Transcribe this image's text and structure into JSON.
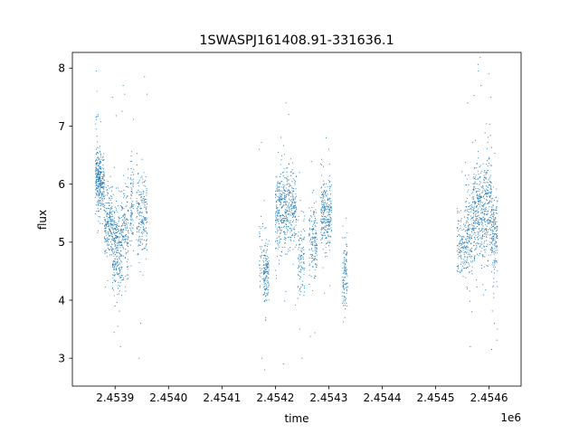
{
  "chart_data": {
    "type": "scatter",
    "title": "1SWASPJ161408.91-331636.1",
    "xlabel": "time",
    "ylabel": "flux",
    "x_offset_label": "1e6",
    "x_scale": 1000000,
    "xlim": [
      2.45382,
      2.45466
    ],
    "ylim": [
      2.52,
      8.27
    ],
    "x_ticks": [
      2.4539,
      2.454,
      2.4541,
      2.4542,
      2.4543,
      2.4544,
      2.4545,
      2.4546
    ],
    "x_tick_labels": [
      "2.4539",
      "2.4540",
      "2.4541",
      "2.4542",
      "2.4543",
      "2.4544",
      "2.4545",
      "2.4546"
    ],
    "y_ticks": [
      3,
      4,
      5,
      6,
      7,
      8
    ],
    "y_tick_labels": [
      "3",
      "4",
      "5",
      "6",
      "7",
      "8"
    ],
    "grid": false,
    "marker_color": "#1f77b4",
    "clusters": [
      {
        "x_start": 2453863,
        "x_end": 2453874,
        "y_center": 6.1,
        "y_spread": 0.25,
        "n": 260
      },
      {
        "x_start": 2453875,
        "x_end": 2453880,
        "y_center": 6.0,
        "y_spread": 0.25,
        "n": 80
      },
      {
        "x_start": 2453880,
        "x_end": 2453895,
        "y_center": 5.3,
        "y_spread": 0.3,
        "n": 200
      },
      {
        "x_start": 2453895,
        "x_end": 2453912,
        "y_center": 4.9,
        "y_spread": 0.35,
        "n": 260
      },
      {
        "x_start": 2453912,
        "x_end": 2453925,
        "y_center": 5.2,
        "y_spread": 0.4,
        "n": 150
      },
      {
        "x_start": 2453928,
        "x_end": 2453935,
        "y_center": 5.6,
        "y_spread": 0.4,
        "n": 80
      },
      {
        "x_start": 2453940,
        "x_end": 2453960,
        "y_center": 5.5,
        "y_spread": 0.35,
        "n": 200
      },
      {
        "x_start": 2454170,
        "x_end": 2454178,
        "y_center": 4.8,
        "y_spread": 0.3,
        "n": 40
      },
      {
        "x_start": 2454178,
        "x_end": 2454188,
        "y_center": 4.45,
        "y_spread": 0.25,
        "n": 140
      },
      {
        "x_start": 2454200,
        "x_end": 2454220,
        "y_center": 5.55,
        "y_spread": 0.35,
        "n": 260
      },
      {
        "x_start": 2454220,
        "x_end": 2454240,
        "y_center": 5.6,
        "y_spread": 0.35,
        "n": 220
      },
      {
        "x_start": 2454242,
        "x_end": 2454255,
        "y_center": 4.75,
        "y_spread": 0.35,
        "n": 100
      },
      {
        "x_start": 2454263,
        "x_end": 2454278,
        "y_center": 5.0,
        "y_spread": 0.3,
        "n": 150
      },
      {
        "x_start": 2454285,
        "x_end": 2454305,
        "y_center": 5.5,
        "y_spread": 0.3,
        "n": 260
      },
      {
        "x_start": 2454325,
        "x_end": 2454335,
        "y_center": 4.45,
        "y_spread": 0.3,
        "n": 110
      },
      {
        "x_start": 2454540,
        "x_end": 2454555,
        "y_center": 5.0,
        "y_spread": 0.3,
        "n": 110
      },
      {
        "x_start": 2454555,
        "x_end": 2454570,
        "y_center": 5.2,
        "y_spread": 0.4,
        "n": 160
      },
      {
        "x_start": 2454570,
        "x_end": 2454588,
        "y_center": 5.5,
        "y_spread": 0.4,
        "n": 260
      },
      {
        "x_start": 2454588,
        "x_end": 2454605,
        "y_center": 5.6,
        "y_spread": 0.45,
        "n": 230
      },
      {
        "x_start": 2454605,
        "x_end": 2454616,
        "y_center": 5.1,
        "y_spread": 0.4,
        "n": 160
      }
    ],
    "outliers": [
      {
        "x": 2453865,
        "y": 7.95
      },
      {
        "x": 2453866,
        "y": 7.6
      },
      {
        "x": 2453868,
        "y": 7.2
      },
      {
        "x": 2453900,
        "y": 3.9
      },
      {
        "x": 2453905,
        "y": 3.55
      },
      {
        "x": 2453910,
        "y": 3.2
      },
      {
        "x": 2453915,
        "y": 7.7
      },
      {
        "x": 2453918,
        "y": 7.55
      },
      {
        "x": 2453945,
        "y": 3.0
      },
      {
        "x": 2453948,
        "y": 3.6
      },
      {
        "x": 2453960,
        "y": 7.55
      },
      {
        "x": 2453895,
        "y": 7.5
      },
      {
        "x": 2454170,
        "y": 6.6
      },
      {
        "x": 2454175,
        "y": 3.0
      },
      {
        "x": 2454180,
        "y": 2.8
      },
      {
        "x": 2454182,
        "y": 3.7
      },
      {
        "x": 2454220,
        "y": 7.4
      },
      {
        "x": 2454225,
        "y": 7.2
      },
      {
        "x": 2454215,
        "y": 2.9
      },
      {
        "x": 2454245,
        "y": 6.2
      },
      {
        "x": 2454250,
        "y": 3.0
      },
      {
        "x": 2454295,
        "y": 6.8
      },
      {
        "x": 2454300,
        "y": 6.6
      },
      {
        "x": 2454330,
        "y": 3.7
      },
      {
        "x": 2454580,
        "y": 7.95
      },
      {
        "x": 2454585,
        "y": 7.7
      },
      {
        "x": 2454600,
        "y": 7.9
      },
      {
        "x": 2454603,
        "y": 7.5
      },
      {
        "x": 2454565,
        "y": 3.2
      },
      {
        "x": 2454568,
        "y": 3.8
      },
      {
        "x": 2454605,
        "y": 3.15
      },
      {
        "x": 2454610,
        "y": 3.6
      },
      {
        "x": 2454560,
        "y": 7.4
      }
    ]
  }
}
